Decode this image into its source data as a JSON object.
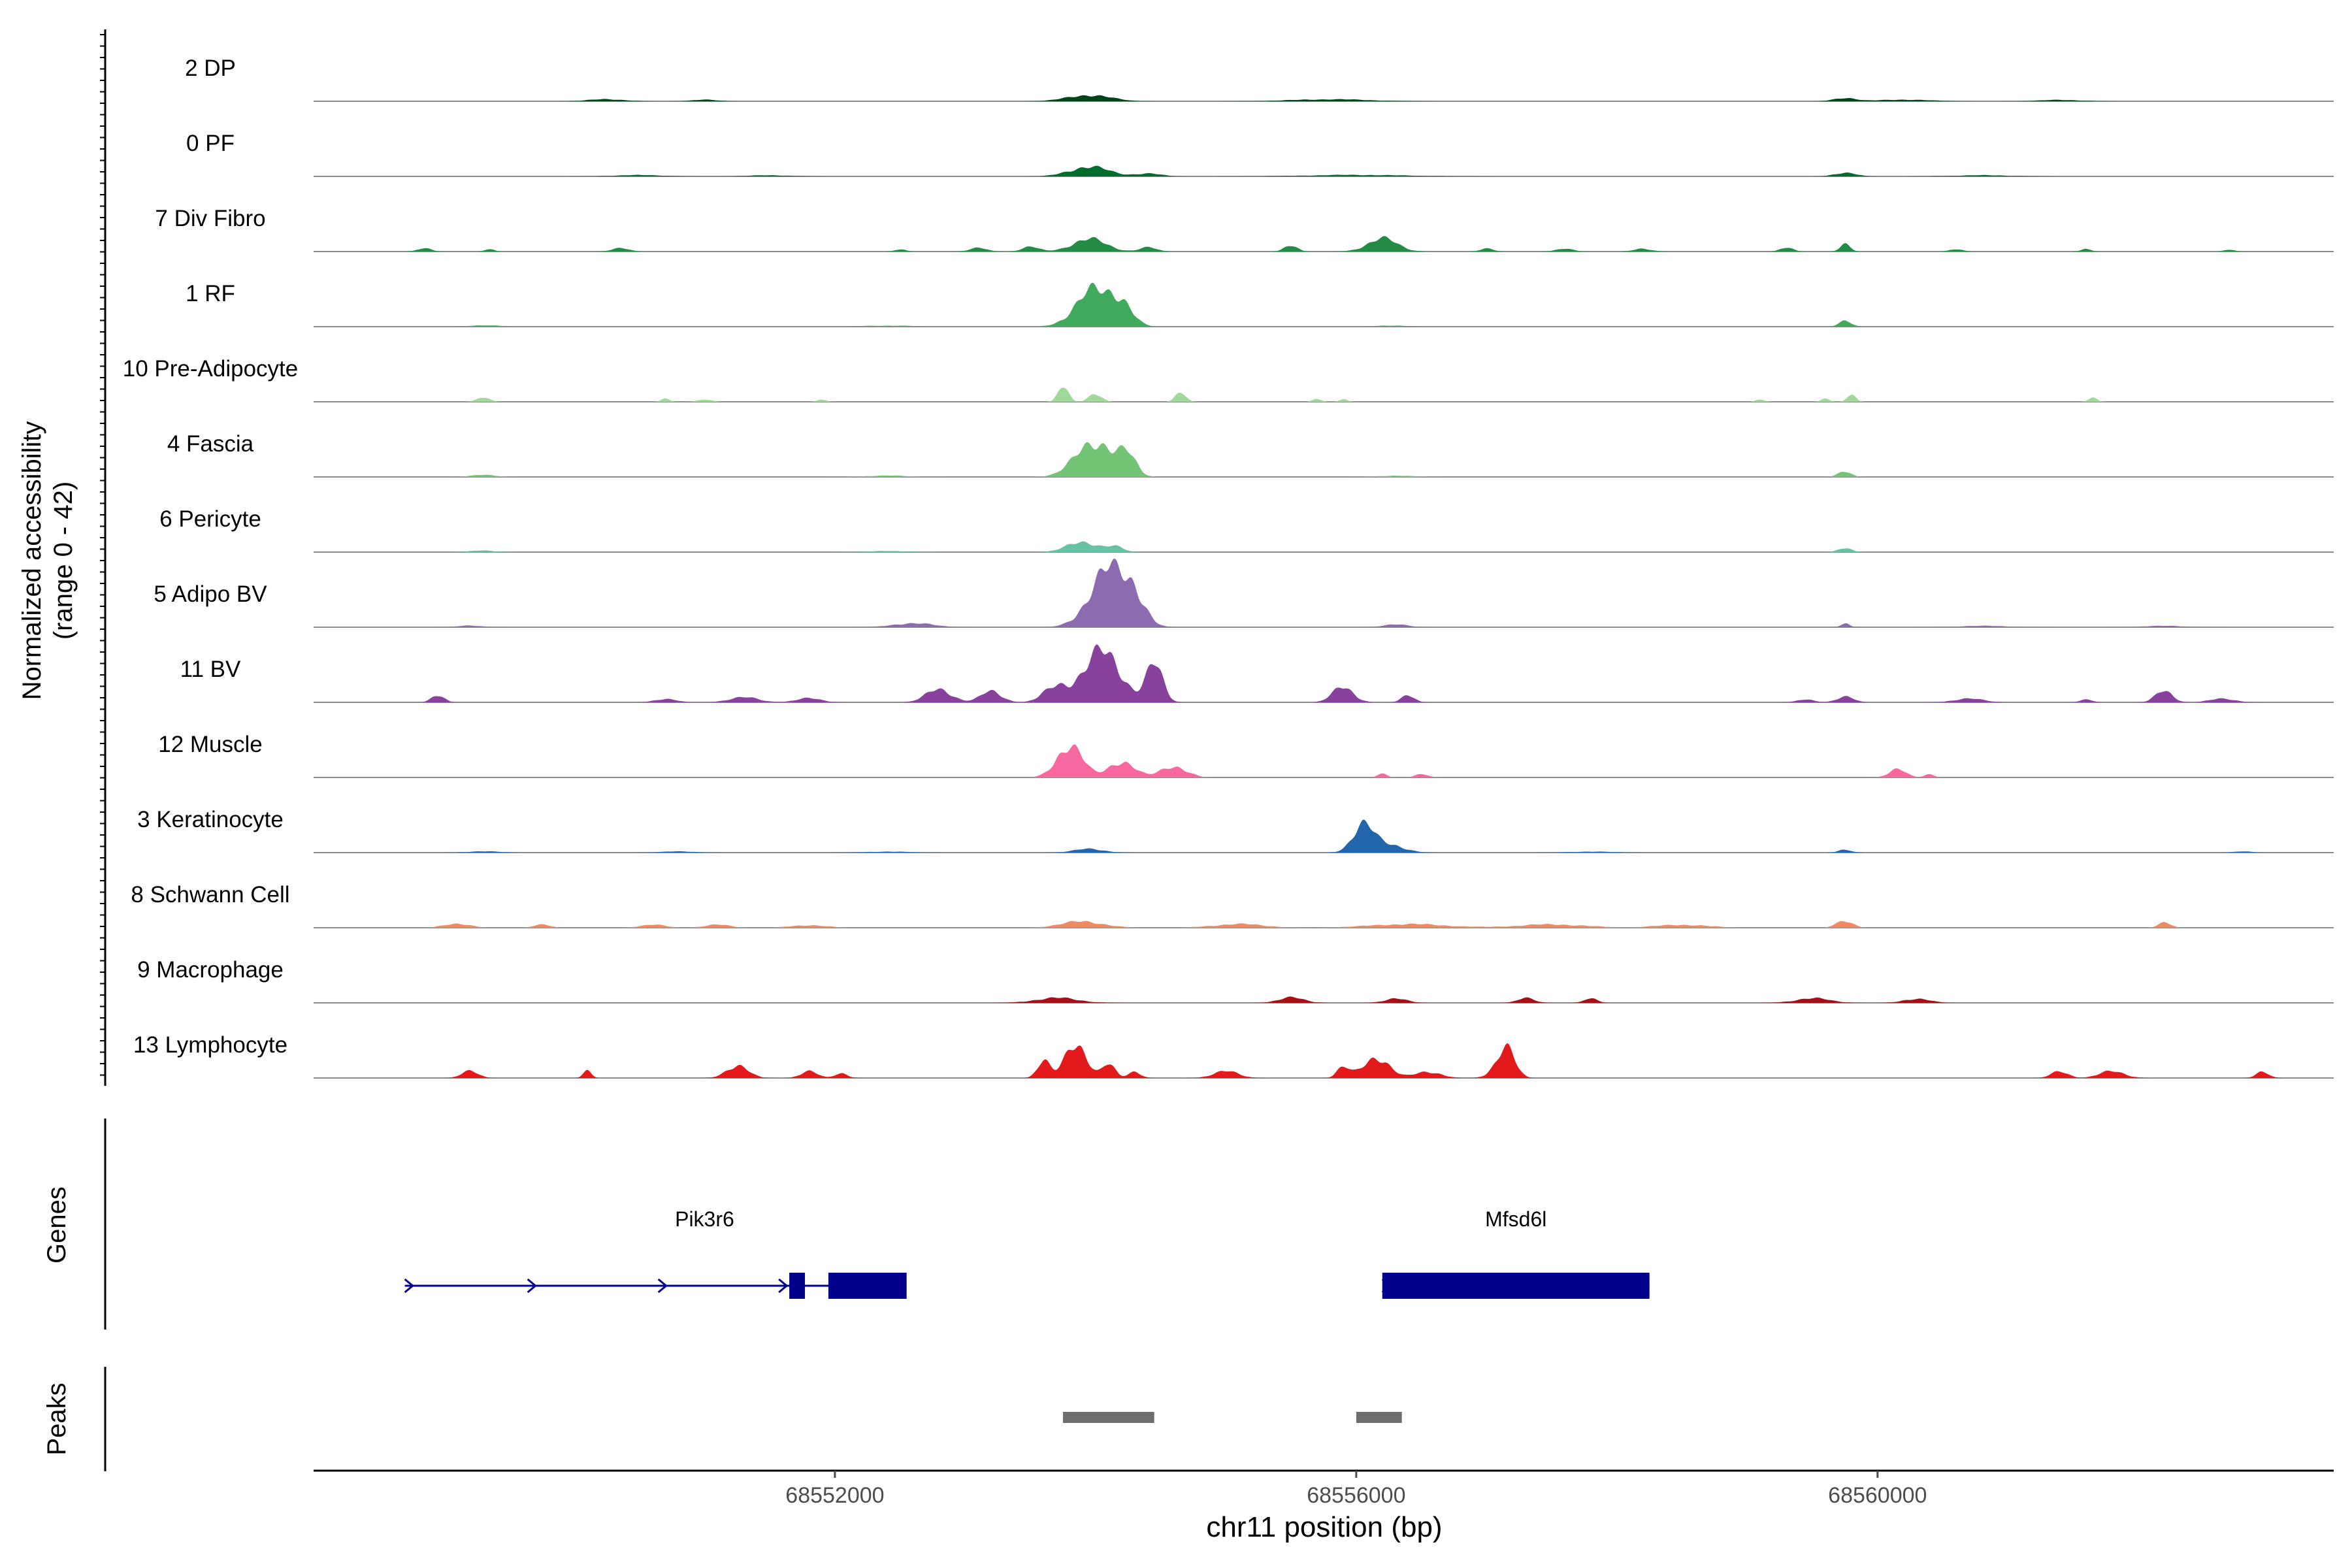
{
  "chart_data": {
    "type": "area",
    "x": {
      "label": "chr11 position (bp)",
      "range": [
        68548000,
        68563500
      ],
      "ticks": [
        68552000,
        68556000,
        68560000
      ]
    },
    "coverage": {
      "ylabel": [
        "Normalized accessibility",
        "(range 0 - 42)"
      ],
      "ylim": [
        0,
        42
      ],
      "tracks": [
        {
          "label": "2 DP",
          "color": "#00441b",
          "peaks": [
            [
              68550250,
              400,
              1.3
            ],
            [
              68551000,
              300,
              0.9
            ],
            [
              68553950,
              500,
              3.8
            ],
            [
              68555800,
              900,
              1.2
            ],
            [
              68559750,
              250,
              2.1
            ],
            [
              68560200,
              600,
              1.0
            ],
            [
              68561400,
              500,
              0.8
            ]
          ]
        },
        {
          "label": "0 PF",
          "color": "#006d2c",
          "peaks": [
            [
              68550500,
              600,
              0.8
            ],
            [
              68551500,
              500,
              0.7
            ],
            [
              68553950,
              450,
              6.0
            ],
            [
              68554400,
              300,
              1.8
            ],
            [
              68556000,
              1200,
              0.9
            ],
            [
              68559750,
              250,
              2.3
            ],
            [
              68560800,
              700,
              0.7
            ]
          ]
        },
        {
          "label": "7 Div Fibro",
          "color": "#238b45",
          "peaks": [
            [
              68548850,
              150,
              2.4
            ],
            [
              68549350,
              100,
              1.8
            ],
            [
              68550350,
              200,
              2.0
            ],
            [
              68552500,
              120,
              1.5
            ],
            [
              68553100,
              200,
              2.1
            ],
            [
              68553500,
              200,
              2.8
            ],
            [
              68553950,
              400,
              7.5
            ],
            [
              68554400,
              200,
              2.5
            ],
            [
              68555500,
              150,
              4.0
            ],
            [
              68556200,
              350,
              7.8
            ],
            [
              68557000,
              150,
              2.0
            ],
            [
              68557600,
              200,
              1.6
            ],
            [
              68558200,
              200,
              1.8
            ],
            [
              68559300,
              150,
              2.4
            ],
            [
              68559750,
              120,
              4.5
            ],
            [
              68560600,
              150,
              1.5
            ],
            [
              68561600,
              120,
              1.4
            ],
            [
              68562700,
              120,
              1.3
            ]
          ]
        },
        {
          "label": "1 RF",
          "color": "#41ab5d",
          "peaks": [
            [
              68554000,
              450,
              22.0
            ],
            [
              68554200,
              250,
              10.0
            ],
            [
              68549300,
              400,
              0.8
            ],
            [
              68552400,
              700,
              0.6
            ],
            [
              68556300,
              500,
              0.6
            ],
            [
              68559750,
              150,
              3.2
            ]
          ]
        },
        {
          "label": "10 Pre-Adipocyte",
          "color": "#a1d99b",
          "peaks": [
            [
              68549300,
              150,
              2.6
            ],
            [
              68550700,
              100,
              1.8
            ],
            [
              68551000,
              150,
              1.6
            ],
            [
              68551900,
              100,
              1.6
            ],
            [
              68553750,
              120,
              10.0
            ],
            [
              68554000,
              150,
              5.0
            ],
            [
              68554650,
              120,
              6.0
            ],
            [
              68555700,
              100,
              1.7
            ],
            [
              68555900,
              100,
              1.7
            ],
            [
              68559100,
              100,
              1.6
            ],
            [
              68559600,
              100,
              1.9
            ],
            [
              68559800,
              100,
              4.5
            ],
            [
              68561650,
              100,
              2.8
            ]
          ]
        },
        {
          "label": "4 Fascia",
          "color": "#74c476",
          "peaks": [
            [
              68554000,
              450,
              22.0
            ],
            [
              68554250,
              200,
              10.0
            ],
            [
              68549300,
              300,
              1.2
            ],
            [
              68552400,
              500,
              0.8
            ],
            [
              68556300,
              400,
              0.8
            ],
            [
              68559750,
              150,
              3.5
            ]
          ]
        },
        {
          "label": "6 Pericyte",
          "color": "#66c2a4",
          "peaks": [
            [
              68553900,
              350,
              6.5
            ],
            [
              68554150,
              200,
              3.0
            ],
            [
              68549300,
              300,
              0.9
            ],
            [
              68552400,
              500,
              0.6
            ],
            [
              68559750,
              150,
              2.8
            ]
          ]
        },
        {
          "label": "5 Adipo BV",
          "color": "#8c6bb1",
          "peaks": [
            [
              68554100,
              450,
              34.0
            ],
            [
              68554300,
              250,
              14.0
            ],
            [
              68552600,
              450,
              2.5
            ],
            [
              68549200,
              300,
              0.9
            ],
            [
              68556300,
              300,
              1.6
            ],
            [
              68559750,
              100,
              2.6
            ],
            [
              68560800,
              600,
              0.8
            ],
            [
              68562200,
              500,
              0.8
            ]
          ]
        },
        {
          "label": "11 BV",
          "color": "#88419d",
          "peaks": [
            [
              68554050,
              450,
              30.0
            ],
            [
              68554450,
              200,
              22.0
            ],
            [
              68553700,
              300,
              9.0
            ],
            [
              68553200,
              250,
              6.5
            ],
            [
              68552800,
              300,
              8.0
            ],
            [
              68551300,
              350,
              3.0
            ],
            [
              68550700,
              250,
              2.2
            ],
            [
              68551800,
              300,
              2.4
            ],
            [
              68548950,
              150,
              4.5
            ],
            [
              68555900,
              250,
              9.0
            ],
            [
              68556400,
              150,
              4.5
            ],
            [
              68559450,
              200,
              1.6
            ],
            [
              68559750,
              200,
              3.5
            ],
            [
              68560700,
              350,
              2.2
            ],
            [
              68561600,
              150,
              1.6
            ],
            [
              68562200,
              200,
              7.0
            ],
            [
              68562650,
              300,
              2.2
            ]
          ]
        },
        {
          "label": "12 Muscle",
          "color": "#f768a1",
          "peaks": [
            [
              68553800,
              300,
              20.0
            ],
            [
              68554200,
              300,
              10.0
            ],
            [
              68554600,
              300,
              7.0
            ],
            [
              68556200,
              120,
              2.0
            ],
            [
              68556500,
              150,
              2.2
            ],
            [
              68560150,
              200,
              5.0
            ],
            [
              68560400,
              120,
              2.0
            ]
          ]
        },
        {
          "label": "3 Keratinocyte",
          "color": "#2166ac",
          "peaks": [
            [
              68556050,
              250,
              16.0
            ],
            [
              68556250,
              350,
              5.0
            ],
            [
              68553950,
              350,
              2.2
            ],
            [
              68549300,
              350,
              0.8
            ],
            [
              68550800,
              400,
              0.7
            ],
            [
              68552400,
              500,
              0.6
            ],
            [
              68557800,
              500,
              0.6
            ],
            [
              68559750,
              150,
              1.6
            ],
            [
              68562800,
              200,
              0.7
            ]
          ]
        },
        {
          "label": "8 Schwann Cell",
          "color": "#ef8a62",
          "peaks": [
            [
              68549100,
              300,
              2.6
            ],
            [
              68549750,
              200,
              1.8
            ],
            [
              68550600,
              300,
              1.8
            ],
            [
              68551100,
              300,
              1.8
            ],
            [
              68551800,
              400,
              1.6
            ],
            [
              68553900,
              500,
              3.8
            ],
            [
              68555100,
              600,
              2.2
            ],
            [
              68556400,
              900,
              2.2
            ],
            [
              68557500,
              800,
              2.0
            ],
            [
              68558500,
              600,
              1.8
            ],
            [
              68559750,
              200,
              4.0
            ],
            [
              68562200,
              150,
              3.4
            ]
          ]
        },
        {
          "label": "9 Macrophage",
          "color": "#a50f15",
          "peaks": [
            [
              68553700,
              500,
              3.0
            ],
            [
              68555500,
              300,
              3.2
            ],
            [
              68556300,
              250,
              2.8
            ],
            [
              68557300,
              200,
              2.8
            ],
            [
              68557800,
              150,
              2.6
            ],
            [
              68559500,
              400,
              2.8
            ],
            [
              68560300,
              300,
              2.6
            ]
          ]
        },
        {
          "label": "13 Lymphocyte",
          "color": "#e31a1c",
          "peaks": [
            [
              68553850,
              250,
              22.0
            ],
            [
              68553600,
              150,
              10.0
            ],
            [
              68554100,
              150,
              8.0
            ],
            [
              68554300,
              150,
              4.0
            ],
            [
              68556150,
              300,
              13.0
            ],
            [
              68555900,
              150,
              6.0
            ],
            [
              68557150,
              200,
              16.0
            ],
            [
              68551250,
              250,
              8.0
            ],
            [
              68549200,
              200,
              4.0
            ],
            [
              68551800,
              200,
              4.0
            ],
            [
              68552050,
              150,
              3.0
            ],
            [
              68557100,
              250,
              4.0
            ],
            [
              68555000,
              300,
              4.0
            ],
            [
              68556550,
              300,
              4.0
            ],
            [
              68561800,
              300,
              4.0
            ],
            [
              68561400,
              200,
              4.0
            ],
            [
              68562950,
              150,
              4.0
            ],
            [
              68550100,
              100,
              4.0
            ]
          ]
        }
      ]
    },
    "genes": {
      "ylabel": "Genes",
      "items": [
        {
          "name": "Pik3r6",
          "strand": "+",
          "start": 68548700,
          "end": 68552550,
          "exons": [
            [
              68551650,
              68551770
            ],
            [
              68551950,
              68552550
            ]
          ]
        },
        {
          "name": "Mfsd6l",
          "strand": "+",
          "start": 68556200,
          "end": 68558250,
          "exons": [
            [
              68556200,
              68558250
            ]
          ]
        }
      ]
    },
    "peaks": {
      "ylabel": "Peaks",
      "regions": [
        [
          68553750,
          68554450
        ],
        [
          68556000,
          68556350
        ]
      ]
    }
  }
}
